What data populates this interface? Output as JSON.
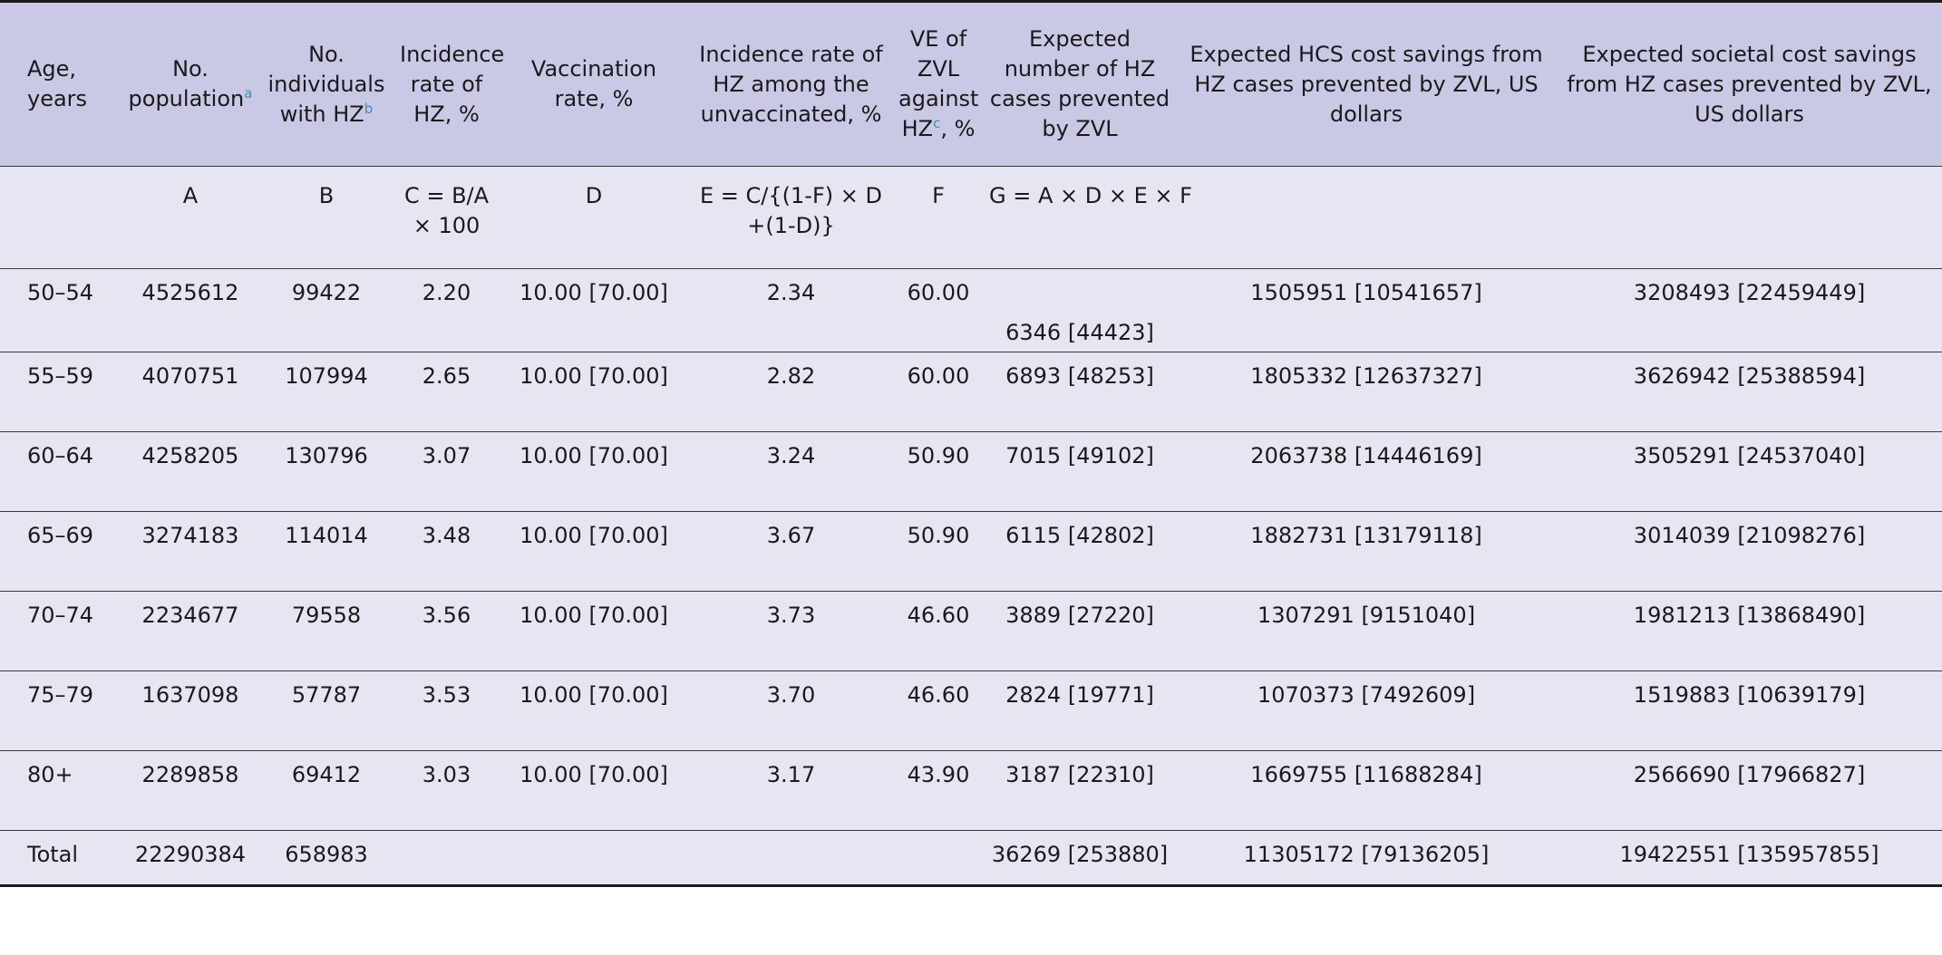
{
  "headers": [
    {
      "text": "Age, years"
    },
    {
      "text": "No. population",
      "sup": "a"
    },
    {
      "text": "No. individuals with HZ",
      "sup": "b"
    },
    {
      "text": "Incidence rate of HZ, %"
    },
    {
      "text": "Vaccination rate, %"
    },
    {
      "text": "Incidence rate of HZ among the unvaccinated, %"
    },
    {
      "text": "VE of ZVL against HZ",
      "sup": "c",
      "suffix": ", %"
    },
    {
      "text": "Expected number of HZ cases prevented by ZVL"
    },
    {
      "text": "Expected HCS cost savings from HZ cases prevented by ZVL, US dollars"
    },
    {
      "text": "Expected societal cost savings from HZ cases prevented by ZVL, US dollars"
    }
  ],
  "formula_row": [
    "",
    "A",
    "B",
    "C = B/A × 100",
    "D",
    "E = C/{(1-F) × D +(1-D)}",
    "F",
    "G = A × D × E × F",
    "",
    ""
  ],
  "rows": [
    [
      "50–54",
      "4525612",
      "99422",
      "2.20",
      "10.00 [70.00]",
      "2.34",
      "60.00",
      "6346 [44423]",
      "1505951 [10541657]",
      "3208493 [22459449]"
    ],
    [
      "55–59",
      "4070751",
      "107994",
      "2.65",
      "10.00 [70.00]",
      "2.82",
      "60.00",
      "6893 [48253]",
      "1805332 [12637327]",
      "3626942 [25388594]"
    ],
    [
      "60–64",
      "4258205",
      "130796",
      "3.07",
      "10.00 [70.00]",
      "3.24",
      "50.90",
      "7015 [49102]",
      "2063738 [14446169]",
      "3505291 [24537040]"
    ],
    [
      "65–69",
      "3274183",
      "114014",
      "3.48",
      "10.00 [70.00]",
      "3.67",
      "50.90",
      "6115 [42802]",
      "1882731 [13179118]",
      "3014039 [21098276]"
    ],
    [
      "70–74",
      "2234677",
      "79558",
      "3.56",
      "10.00 [70.00]",
      "3.73",
      "46.60",
      "3889 [27220]",
      "1307291 [9151040]",
      "1981213 [13868490]"
    ],
    [
      "75–79",
      "1637098",
      "57787",
      "3.53",
      "10.00 [70.00]",
      "3.70",
      "46.60",
      "2824 [19771]",
      "1070373 [7492609]",
      "1519883 [10639179]"
    ],
    [
      "80+",
      "2289858",
      "69412",
      "3.03",
      "10.00 [70.00]",
      "3.17",
      "43.90",
      "3187 [22310]",
      "1669755 [11688284]",
      "2566690 [17966827]"
    ]
  ],
  "total_row": [
    "Total",
    "22290384",
    "658983",
    "",
    "",
    "",
    "",
    "36269 [253880]",
    "11305172 [79136205]",
    "19422551 [135957855]"
  ]
}
